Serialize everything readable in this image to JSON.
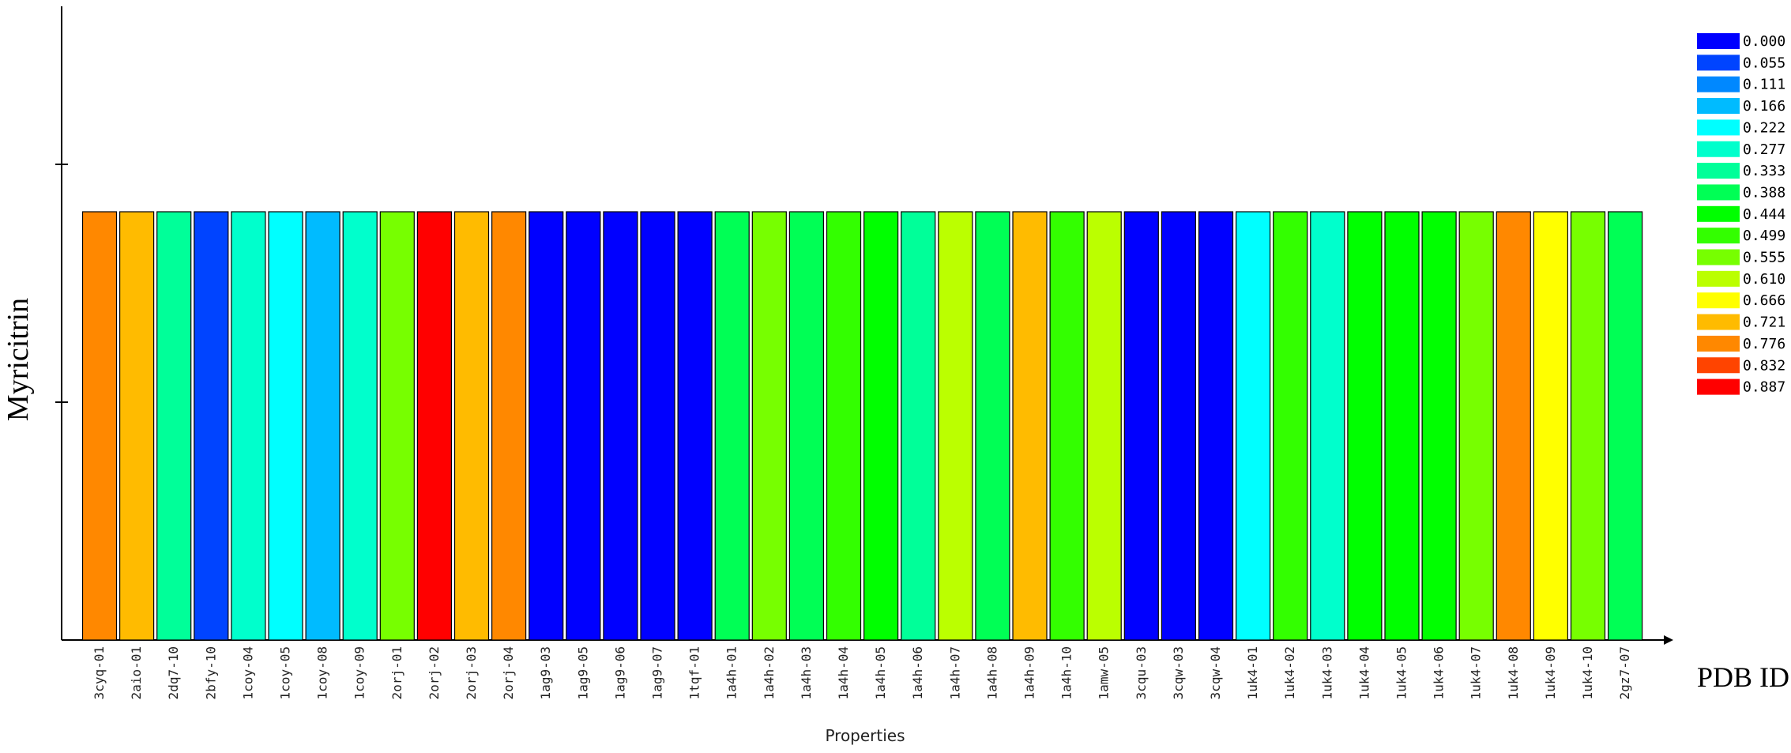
{
  "chart_data": {
    "type": "bar",
    "ylabel": "Myricitrin",
    "xlabel": "PDB ID",
    "x_subtitle": "Properties",
    "grid": false,
    "legend_position": "right",
    "categories": [
      "3cyq-01",
      "2aio-01",
      "2dq7-10",
      "2bfy-10",
      "1coy-04",
      "1coy-05",
      "1coy-08",
      "1coy-09",
      "2orj-01",
      "2orj-02",
      "2orj-03",
      "2orj-04",
      "1ag9-03",
      "1ag9-05",
      "1ag9-06",
      "1ag9-07",
      "1tqf-01",
      "1a4h-01",
      "1a4h-02",
      "1a4h-03",
      "1a4h-04",
      "1a4h-05",
      "1a4h-06",
      "1a4h-07",
      "1a4h-08",
      "1a4h-09",
      "1a4h-10",
      "1amw-05",
      "3cqu-03",
      "3cqw-03",
      "3cqw-04",
      "1uk4-01",
      "1uk4-02",
      "1uk4-03",
      "1uk4-04",
      "1uk4-05",
      "1uk4-06",
      "1uk4-07",
      "1uk4-08",
      "1uk4-09",
      "1uk4-10",
      "2gz7-07"
    ],
    "color_values": [
      0.776,
      0.721,
      0.333,
      0.055,
      0.277,
      0.222,
      0.166,
      0.277,
      0.555,
      0.887,
      0.721,
      0.776,
      0.0,
      0.0,
      0.0,
      0.0,
      0.0,
      0.388,
      0.555,
      0.388,
      0.499,
      0.444,
      0.333,
      0.61,
      0.388,
      0.721,
      0.499,
      0.61,
      0.0,
      0.0,
      0.0,
      0.222,
      0.499,
      0.277,
      0.444,
      0.444,
      0.444,
      0.555,
      0.776,
      0.666,
      0.555,
      0.388
    ],
    "legend": {
      "labels": [
        "0.000",
        "0.055",
        "0.111",
        "0.166",
        "0.222",
        "0.277",
        "0.333",
        "0.388",
        "0.444",
        "0.499",
        "0.555",
        "0.610",
        "0.666",
        "0.721",
        "0.776",
        "0.832",
        "0.887"
      ],
      "colors": [
        "#0000ff",
        "#0044ff",
        "#0088ff",
        "#00bbff",
        "#00ffff",
        "#00ffcc",
        "#00ff99",
        "#00ff55",
        "#00ff00",
        "#33ff00",
        "#77ff00",
        "#bbff00",
        "#ffff00",
        "#ffbb00",
        "#ff8800",
        "#ff4400",
        "#ff0000"
      ]
    }
  }
}
